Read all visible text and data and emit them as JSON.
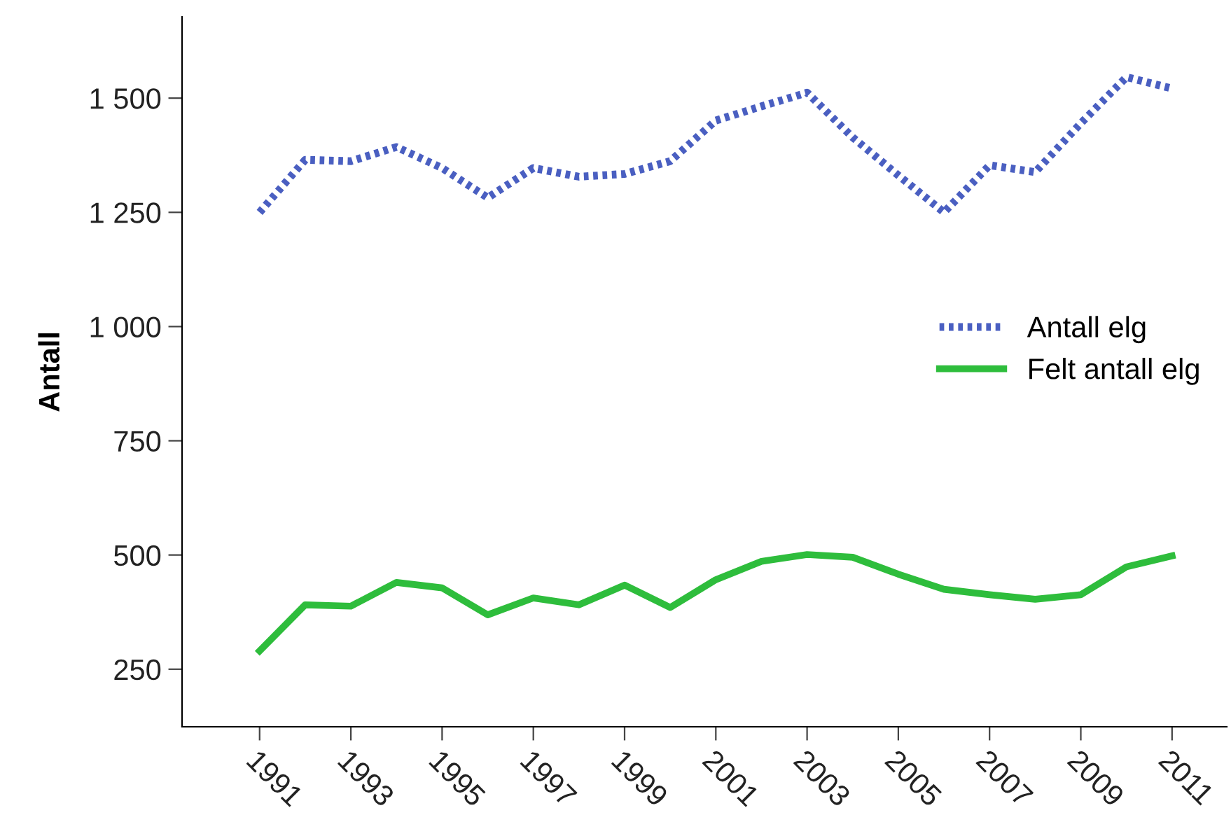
{
  "chart_data": {
    "type": "line",
    "ylabel": "Antall",
    "x": [
      1991,
      1992,
      1993,
      1994,
      1995,
      1996,
      1997,
      1998,
      1999,
      2000,
      2001,
      2002,
      2003,
      2004,
      2005,
      2006,
      2007,
      2008,
      2009,
      2010,
      2011
    ],
    "series": [
      {
        "name": "Antall elg",
        "color": "#4a5fc1",
        "line_style": "dotted",
        "values": [
          1250,
          1365,
          1362,
          1393,
          1347,
          1282,
          1347,
          1328,
          1334,
          1362,
          1451,
          1482,
          1512,
          1414,
          1331,
          1250,
          1353,
          1338,
          1445,
          1546,
          1521
        ]
      },
      {
        "name": "Felt antall elg",
        "color": "#2ebd3c",
        "line_style": "solid",
        "values": [
          290,
          391,
          388,
          440,
          428,
          369,
          406,
          391,
          434,
          385,
          446,
          486,
          501,
          495,
          458,
          425,
          413,
          403,
          413,
          474,
          498
        ]
      }
    ],
    "xlim": [
      1989.3,
      2012.2
    ],
    "ylim": [
      124,
      1678
    ],
    "xticks": [
      1991,
      1993,
      1995,
      1997,
      1999,
      2001,
      2003,
      2005,
      2007,
      2009,
      2011
    ],
    "yticks": [
      {
        "value": 250,
        "label": "250"
      },
      {
        "value": 500,
        "label": "500"
      },
      {
        "value": 750,
        "label": "750"
      },
      {
        "value": 1000,
        "label": "1 000"
      },
      {
        "value": 1250,
        "label": "1 250"
      },
      {
        "value": 1500,
        "label": "1 500"
      }
    ],
    "grid": false,
    "legend": "right",
    "marker": "none"
  }
}
